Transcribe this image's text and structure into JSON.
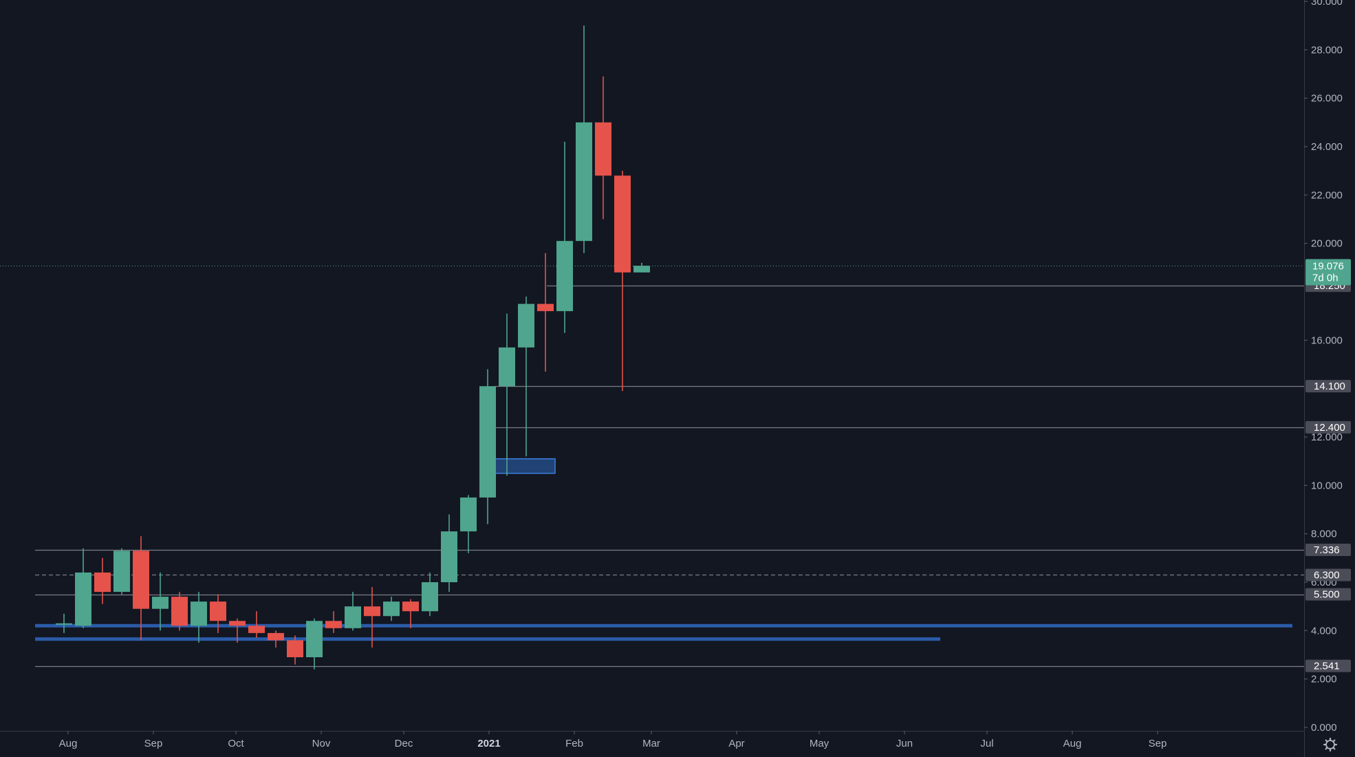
{
  "colors": {
    "background": "#131722",
    "up": "#4fa58e",
    "down": "#e5534b",
    "axis_text": "#b2b5be",
    "level_line": "#7a7d86",
    "level_tag": "#4a4d57",
    "price_tag": "#4fa58e",
    "support_band": "#2a5ba8",
    "zone_fill": "#234a83",
    "zone_border": "#3d7fe0"
  },
  "settings": {
    "icon": "gear-icon"
  },
  "chart_data": {
    "type": "candlestick",
    "interval": "weekly",
    "x_axis_labels": [
      {
        "date": "2020-08-01",
        "label": "Aug"
      },
      {
        "date": "2020-09-01",
        "label": "Sep"
      },
      {
        "date": "2020-10-01",
        "label": "Oct"
      },
      {
        "date": "2020-11-01",
        "label": "Nov"
      },
      {
        "date": "2020-12-01",
        "label": "Dec"
      },
      {
        "date": "2021-01-01",
        "label": "2021",
        "bold": true
      },
      {
        "date": "2021-02-01",
        "label": "Feb"
      },
      {
        "date": "2021-03-01",
        "label": "Mar"
      },
      {
        "date": "2021-04-01",
        "label": "Apr"
      },
      {
        "date": "2021-05-01",
        "label": "May"
      },
      {
        "date": "2021-06-01",
        "label": "Jun"
      },
      {
        "date": "2021-07-01",
        "label": "Jul"
      },
      {
        "date": "2021-08-01",
        "label": "Aug"
      },
      {
        "date": "2021-09-01",
        "label": "Sep"
      }
    ],
    "y_axis": {
      "min": 0,
      "max": 30,
      "ticks": [
        {
          "v": 0,
          "label": "0.000"
        },
        {
          "v": 2,
          "label": "2.000"
        },
        {
          "v": 4,
          "label": "4.000"
        },
        {
          "v": 6,
          "label": "6.000"
        },
        {
          "v": 8,
          "label": "8.000"
        },
        {
          "v": 10,
          "label": "10.000"
        },
        {
          "v": 12,
          "label": "12.000"
        },
        {
          "v": 16,
          "label": "16.000"
        },
        {
          "v": 20,
          "label": "20.000"
        },
        {
          "v": 22,
          "label": "22.000"
        },
        {
          "v": 24,
          "label": "24.000"
        },
        {
          "v": 26,
          "label": "26.000"
        },
        {
          "v": 28,
          "label": "28.000"
        },
        {
          "v": 30,
          "label": "30.000"
        }
      ]
    },
    "candles": [
      {
        "date": "2020-07-27",
        "o": 4.3,
        "h": 4.7,
        "l": 3.9,
        "c": 4.3
      },
      {
        "date": "2020-08-03",
        "o": 4.2,
        "h": 7.4,
        "l": 4.1,
        "c": 6.4
      },
      {
        "date": "2020-08-10",
        "o": 6.4,
        "h": 7.0,
        "l": 5.1,
        "c": 5.6
      },
      {
        "date": "2020-08-17",
        "o": 5.6,
        "h": 7.4,
        "l": 5.5,
        "c": 7.3
      },
      {
        "date": "2020-08-24",
        "o": 7.3,
        "h": 7.9,
        "l": 3.6,
        "c": 4.9
      },
      {
        "date": "2020-08-31",
        "o": 4.9,
        "h": 6.4,
        "l": 4.0,
        "c": 5.4
      },
      {
        "date": "2020-09-07",
        "o": 5.4,
        "h": 5.6,
        "l": 4.0,
        "c": 4.2
      },
      {
        "date": "2020-09-14",
        "o": 4.2,
        "h": 5.6,
        "l": 3.5,
        "c": 5.2
      },
      {
        "date": "2020-09-21",
        "o": 5.2,
        "h": 5.5,
        "l": 3.9,
        "c": 4.4
      },
      {
        "date": "2020-09-28",
        "o": 4.4,
        "h": 4.5,
        "l": 3.5,
        "c": 4.2
      },
      {
        "date": "2020-10-05",
        "o": 4.2,
        "h": 4.8,
        "l": 3.7,
        "c": 3.9
      },
      {
        "date": "2020-10-12",
        "o": 3.9,
        "h": 4.0,
        "l": 3.3,
        "c": 3.6
      },
      {
        "date": "2020-10-19",
        "o": 3.6,
        "h": 3.8,
        "l": 2.6,
        "c": 2.9
      },
      {
        "date": "2020-10-26",
        "o": 2.9,
        "h": 4.5,
        "l": 2.4,
        "c": 4.4
      },
      {
        "date": "2020-11-02",
        "o": 4.4,
        "h": 4.8,
        "l": 3.9,
        "c": 4.1
      },
      {
        "date": "2020-11-09",
        "o": 4.1,
        "h": 5.6,
        "l": 4.0,
        "c": 5.0
      },
      {
        "date": "2020-11-16",
        "o": 5.0,
        "h": 5.8,
        "l": 3.3,
        "c": 4.6
      },
      {
        "date": "2020-11-23",
        "o": 4.6,
        "h": 5.4,
        "l": 4.4,
        "c": 5.2
      },
      {
        "date": "2020-11-30",
        "o": 5.2,
        "h": 5.3,
        "l": 4.1,
        "c": 4.8
      },
      {
        "date": "2020-12-07",
        "o": 4.8,
        "h": 6.4,
        "l": 4.6,
        "c": 6.0
      },
      {
        "date": "2020-12-14",
        "o": 6.0,
        "h": 8.8,
        "l": 5.6,
        "c": 8.1
      },
      {
        "date": "2020-12-21",
        "o": 8.1,
        "h": 9.6,
        "l": 7.2,
        "c": 9.5
      },
      {
        "date": "2020-12-28",
        "o": 9.5,
        "h": 14.8,
        "l": 8.4,
        "c": 14.1
      },
      {
        "date": "2021-01-04",
        "o": 14.1,
        "h": 17.1,
        "l": 10.4,
        "c": 15.7
      },
      {
        "date": "2021-01-11",
        "o": 15.7,
        "h": 17.8,
        "l": 11.2,
        "c": 17.5
      },
      {
        "date": "2021-01-18",
        "o": 17.5,
        "h": 19.6,
        "l": 14.7,
        "c": 17.2
      },
      {
        "date": "2021-01-25",
        "o": 17.2,
        "h": 24.2,
        "l": 16.3,
        "c": 20.1
      },
      {
        "date": "2021-02-01",
        "o": 20.1,
        "h": 29.0,
        "l": 19.6,
        "c": 25.0
      },
      {
        "date": "2021-02-08",
        "o": 25.0,
        "h": 26.9,
        "l": 21.0,
        "c": 22.8
      },
      {
        "date": "2021-02-15",
        "o": 22.8,
        "h": 23.0,
        "l": 13.9,
        "c": 18.8
      },
      {
        "date": "2021-02-22",
        "o": 18.8,
        "h": 19.2,
        "l": 18.8,
        "c": 19.076
      }
    ],
    "horizontal_levels": [
      {
        "value": 18.25,
        "label": "18.250",
        "style": "solid",
        "start": "2021-01-22"
      },
      {
        "value": 14.1,
        "label": "14.100",
        "style": "solid",
        "start": "2021-01-03"
      },
      {
        "value": 12.4,
        "label": "12.400",
        "style": "solid",
        "start": "2021-01-01"
      },
      {
        "value": 7.336,
        "label": "7.336",
        "style": "solid",
        "start": "2020-07-20"
      },
      {
        "value": 6.3,
        "label": "6.300",
        "style": "dashed",
        "start": "2020-07-20"
      },
      {
        "value": 5.5,
        "label": "5.500",
        "style": "solid",
        "start": "2020-07-20"
      },
      {
        "value": 2.541,
        "label": "2.541",
        "style": "solid",
        "start": "2020-07-20"
      }
    ],
    "support_bands": [
      {
        "value": 4.2,
        "start": "2020-07-20",
        "end": "2021-10-20"
      },
      {
        "value": 3.65,
        "start": "2020-07-20",
        "end": "2021-06-14"
      }
    ],
    "zone": {
      "start": "2021-01-01",
      "end": "2021-01-25",
      "top": 11.1,
      "bottom": 10.5
    },
    "last_price": {
      "value": 19.076,
      "label": "19.076",
      "countdown": "7d 0h"
    }
  }
}
